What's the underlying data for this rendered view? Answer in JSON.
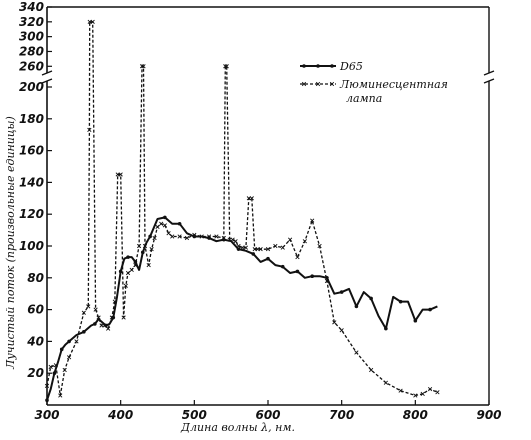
{
  "chart_data": {
    "type": "line",
    "xlabel": "Длина волны λ, нм.",
    "ylabel": "Лучистый поток (произвольные единицы)",
    "xlim": [
      300,
      900
    ],
    "xticks": [
      300,
      400,
      500,
      600,
      700,
      800,
      900
    ],
    "ylim_lower": [
      0,
      205
    ],
    "ylim_upper": [
      255,
      340
    ],
    "yticks_lower": [
      20,
      40,
      60,
      80,
      100,
      120,
      140,
      160,
      180,
      200
    ],
    "yticks_upper": [
      260,
      280,
      300,
      320,
      340
    ],
    "axis_break": true,
    "grid": false,
    "legend_position": "top-right",
    "series": [
      {
        "name": "D65",
        "style": "solid-dot",
        "x": [
          300,
          305,
          310,
          315,
          320,
          325,
          330,
          340,
          350,
          360,
          365,
          370,
          380,
          385,
          390,
          395,
          400,
          405,
          410,
          415,
          420,
          425,
          430,
          435,
          440,
          450,
          460,
          470,
          480,
          490,
          500,
          510,
          520,
          530,
          540,
          550,
          560,
          570,
          580,
          590,
          600,
          610,
          620,
          630,
          640,
          650,
          660,
          670,
          680,
          690,
          700,
          710,
          720,
          730,
          740,
          750,
          760,
          770,
          780,
          790,
          800,
          810,
          820,
          830
        ],
        "y": [
          3,
          10,
          20,
          27,
          35,
          38,
          40,
          44,
          46,
          50,
          51,
          54,
          50,
          51,
          55,
          68,
          84,
          92,
          93,
          93,
          90,
          85,
          96,
          102,
          106,
          117,
          118,
          114,
          114,
          108,
          106,
          106,
          105,
          103,
          104,
          103,
          98,
          97,
          95,
          90,
          92,
          88,
          87,
          83,
          84,
          80,
          81,
          81,
          80,
          70,
          71,
          73,
          62,
          71,
          67,
          56,
          48,
          68,
          65,
          65,
          53,
          60,
          60,
          62
        ]
      },
      {
        "name": "Люминесцентная лампа",
        "style": "dashed-cross",
        "x": [
          300,
          305,
          312,
          318,
          324,
          330,
          340,
          350,
          356,
          357.5,
          358,
          362,
          366,
          370,
          374,
          378,
          383,
          388,
          392,
          396,
          400,
          404,
          407,
          410,
          415,
          420,
          425,
          429,
          431,
          433,
          438,
          442,
          446,
          450,
          455,
          460,
          465,
          470,
          480,
          490,
          500,
          510,
          520,
          530,
          540,
          542,
          544,
          548,
          552,
          556,
          560,
          565,
          570,
          574,
          578,
          582,
          586,
          590,
          600,
          610,
          620,
          630,
          640,
          650,
          660,
          670,
          680,
          690,
          700,
          720,
          740,
          760,
          780,
          800,
          810,
          820,
          830
        ],
        "y": [
          12,
          24,
          25,
          6,
          22,
          30,
          40,
          58,
          62,
          173,
          320,
          320,
          60,
          55,
          50,
          50,
          48,
          55,
          65,
          145,
          145,
          55,
          75,
          83,
          85,
          88,
          100,
          260,
          260,
          100,
          88,
          98,
          105,
          112,
          114,
          113,
          108,
          106,
          106,
          105,
          107,
          106,
          106,
          106,
          105,
          260,
          260,
          104,
          104,
          103,
          100,
          99,
          99,
          130,
          130,
          98,
          98,
          98,
          98,
          100,
          99,
          104,
          93,
          103,
          116,
          100,
          78,
          52,
          47,
          33,
          22,
          14,
          9,
          6,
          7,
          10,
          8
        ]
      }
    ]
  }
}
